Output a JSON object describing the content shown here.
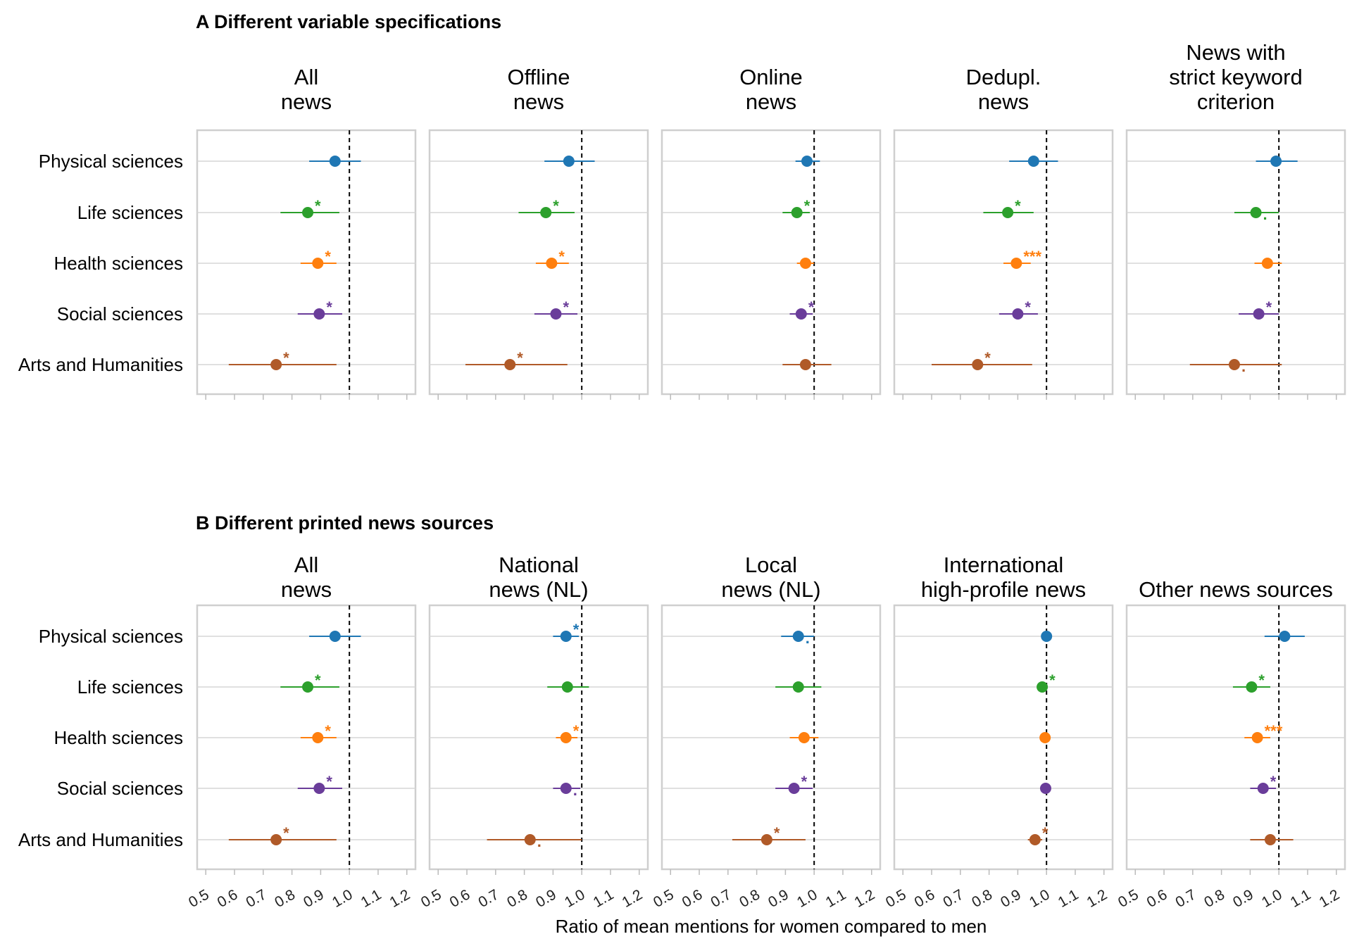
{
  "chart_data": {
    "type": "forest",
    "xlabel": "Ratio of mean mentions for women compared to men",
    "reference_line": 1.0,
    "xlim": [
      0.47,
      1.23
    ],
    "xticks": [
      "0.5",
      "0.6",
      "0.7",
      "0.8",
      "0.9",
      "1.0",
      "1.1",
      "1.2"
    ],
    "categories": [
      "Physical sciences",
      "Life sciences",
      "Health sciences",
      "Social sciences",
      "Arts and Humanities"
    ],
    "colors": [
      "#1f77b4",
      "#2ca02c",
      "#ff7f0e",
      "#6a3d9a",
      "#b05a28"
    ],
    "sections": [
      {
        "title": "A Different variable specifications",
        "facets": [
          {
            "title": [
              "All",
              "news"
            ],
            "points": [
              {
                "est": 0.95,
                "lo": 0.86,
                "hi": 1.04,
                "sig": ""
              },
              {
                "est": 0.855,
                "lo": 0.76,
                "hi": 0.965,
                "sig": "*"
              },
              {
                "est": 0.89,
                "lo": 0.83,
                "hi": 0.955,
                "sig": "*"
              },
              {
                "est": 0.895,
                "lo": 0.82,
                "hi": 0.975,
                "sig": "*"
              },
              {
                "est": 0.745,
                "lo": 0.58,
                "hi": 0.955,
                "sig": "*"
              }
            ]
          },
          {
            "title": [
              "Offline",
              "news"
            ],
            "points": [
              {
                "est": 0.955,
                "lo": 0.87,
                "hi": 1.045,
                "sig": ""
              },
              {
                "est": 0.875,
                "lo": 0.78,
                "hi": 0.975,
                "sig": "*"
              },
              {
                "est": 0.895,
                "lo": 0.84,
                "hi": 0.955,
                "sig": "*"
              },
              {
                "est": 0.91,
                "lo": 0.835,
                "hi": 0.985,
                "sig": "*"
              },
              {
                "est": 0.75,
                "lo": 0.595,
                "hi": 0.95,
                "sig": "*"
              }
            ]
          },
          {
            "title": [
              "Online",
              "news"
            ],
            "points": [
              {
                "est": 0.975,
                "lo": 0.935,
                "hi": 1.02,
                "sig": ""
              },
              {
                "est": 0.94,
                "lo": 0.89,
                "hi": 0.985,
                "sig": "*"
              },
              {
                "est": 0.97,
                "lo": 0.94,
                "hi": 1.0,
                "sig": ""
              },
              {
                "est": 0.955,
                "lo": 0.915,
                "hi": 0.995,
                "sig": "*"
              },
              {
                "est": 0.97,
                "lo": 0.89,
                "hi": 1.06,
                "sig": ""
              }
            ]
          },
          {
            "title": [
              "Dedupl.",
              "news"
            ],
            "points": [
              {
                "est": 0.955,
                "lo": 0.87,
                "hi": 1.04,
                "sig": ""
              },
              {
                "est": 0.865,
                "lo": 0.78,
                "hi": 0.955,
                "sig": "*"
              },
              {
                "est": 0.895,
                "lo": 0.85,
                "hi": 0.945,
                "sig": "***"
              },
              {
                "est": 0.9,
                "lo": 0.835,
                "hi": 0.97,
                "sig": "*"
              },
              {
                "est": 0.76,
                "lo": 0.6,
                "hi": 0.95,
                "sig": "*"
              }
            ]
          },
          {
            "title": [
              "News with",
              "strict keyword",
              "criterion"
            ],
            "points": [
              {
                "est": 0.99,
                "lo": 0.92,
                "hi": 1.065,
                "sig": ""
              },
              {
                "est": 0.92,
                "lo": 0.845,
                "hi": 1.0,
                "sig": "."
              },
              {
                "est": 0.96,
                "lo": 0.915,
                "hi": 1.01,
                "sig": ""
              },
              {
                "est": 0.93,
                "lo": 0.86,
                "hi": 1.0,
                "sig": "*"
              },
              {
                "est": 0.845,
                "lo": 0.69,
                "hi": 1.01,
                "sig": "."
              }
            ]
          }
        ]
      },
      {
        "title": "B Different printed news sources",
        "facets": [
          {
            "title": [
              "All",
              "news"
            ],
            "points": [
              {
                "est": 0.95,
                "lo": 0.86,
                "hi": 1.04,
                "sig": ""
              },
              {
                "est": 0.855,
                "lo": 0.76,
                "hi": 0.965,
                "sig": "*"
              },
              {
                "est": 0.89,
                "lo": 0.83,
                "hi": 0.955,
                "sig": "*"
              },
              {
                "est": 0.895,
                "lo": 0.82,
                "hi": 0.975,
                "sig": "*"
              },
              {
                "est": 0.745,
                "lo": 0.58,
                "hi": 0.955,
                "sig": "*"
              }
            ]
          },
          {
            "title": [
              "National",
              "news (NL)"
            ],
            "points": [
              {
                "est": 0.945,
                "lo": 0.9,
                "hi": 0.99,
                "sig": "*"
              },
              {
                "est": 0.95,
                "lo": 0.88,
                "hi": 1.025,
                "sig": ""
              },
              {
                "est": 0.945,
                "lo": 0.91,
                "hi": 0.985,
                "sig": "*"
              },
              {
                "est": 0.945,
                "lo": 0.9,
                "hi": 0.995,
                "sig": "."
              },
              {
                "est": 0.82,
                "lo": 0.67,
                "hi": 1.0,
                "sig": "."
              }
            ]
          },
          {
            "title": [
              "Local",
              "news (NL)"
            ],
            "points": [
              {
                "est": 0.945,
                "lo": 0.885,
                "hi": 1.0,
                "sig": "."
              },
              {
                "est": 0.945,
                "lo": 0.865,
                "hi": 1.025,
                "sig": ""
              },
              {
                "est": 0.965,
                "lo": 0.915,
                "hi": 1.015,
                "sig": ""
              },
              {
                "est": 0.93,
                "lo": 0.865,
                "hi": 0.995,
                "sig": "*"
              },
              {
                "est": 0.835,
                "lo": 0.715,
                "hi": 0.97,
                "sig": "*"
              }
            ]
          },
          {
            "title": [
              "International",
              "high-profile news"
            ],
            "points": [
              {
                "est": 1.0,
                "lo": 0.985,
                "hi": 1.015,
                "sig": ""
              },
              {
                "est": 0.985,
                "lo": 0.97,
                "hi": 0.995,
                "sig": "*"
              },
              {
                "est": 0.995,
                "lo": 0.98,
                "hi": 1.01,
                "sig": ""
              },
              {
                "est": 0.997,
                "lo": 0.987,
                "hi": 1.007,
                "sig": ""
              },
              {
                "est": 0.96,
                "lo": 0.935,
                "hi": 0.985,
                "sig": "*"
              }
            ]
          },
          {
            "title": [
              "Other news sources"
            ],
            "points": [
              {
                "est": 1.02,
                "lo": 0.95,
                "hi": 1.09,
                "sig": ""
              },
              {
                "est": 0.905,
                "lo": 0.84,
                "hi": 0.97,
                "sig": "*"
              },
              {
                "est": 0.925,
                "lo": 0.88,
                "hi": 0.97,
                "sig": "***"
              },
              {
                "est": 0.945,
                "lo": 0.9,
                "hi": 0.99,
                "sig": "*"
              },
              {
                "est": 0.97,
                "lo": 0.9,
                "hi": 1.05,
                "sig": ""
              }
            ]
          }
        ]
      }
    ]
  }
}
